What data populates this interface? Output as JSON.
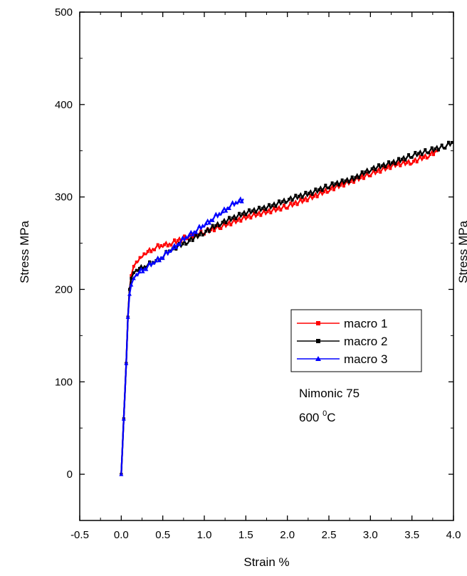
{
  "chart_data": {
    "type": "line",
    "xlabel": "Strain   %",
    "ylabel": "Stress   MPa",
    "xlim": [
      -0.5,
      4.0
    ],
    "ylim": [
      -50,
      500
    ],
    "x_ticks": [
      -0.5,
      0.0,
      0.5,
      1.0,
      1.5,
      2.0,
      2.5,
      3.0,
      3.5,
      4.0
    ],
    "x_tick_labels": [
      "-0.5",
      "0.0",
      "0.5",
      "1.0",
      "1.5",
      "2.0",
      "2.5",
      "3.0",
      "3.5",
      "4.0"
    ],
    "y_ticks": [
      0,
      100,
      200,
      300,
      400,
      500
    ],
    "y_tick_labels": [
      "0",
      "100",
      "200",
      "300",
      "400",
      "500"
    ],
    "grid": false,
    "legend_position": "center-right",
    "annotations": {
      "material": "Nimonic 75",
      "temperature_value": "600 ",
      "temperature_superscript": "0",
      "temperature_unit": "C"
    },
    "clipped_right_axis_label": "Stress   MPa",
    "series": [
      {
        "name": "macro 1",
        "color": "#ff0000",
        "marker": "square",
        "x": [
          0.0,
          0.03,
          0.06,
          0.08,
          0.1,
          0.12,
          0.15,
          0.2,
          0.25,
          0.3,
          0.4,
          0.5,
          0.6,
          0.8,
          1.0,
          1.2,
          1.5,
          1.8,
          2.0,
          2.3,
          2.5,
          2.8,
          3.0,
          3.3,
          3.5,
          3.7,
          3.8
        ],
        "y": [
          0,
          60,
          120,
          170,
          200,
          215,
          225,
          232,
          237,
          240,
          245,
          248,
          250,
          257,
          262,
          268,
          278,
          285,
          290,
          300,
          308,
          318,
          325,
          335,
          338,
          345,
          350
        ]
      },
      {
        "name": "macro 2",
        "color": "#000000",
        "marker": "square",
        "x": [
          0.0,
          0.03,
          0.06,
          0.08,
          0.1,
          0.12,
          0.15,
          0.2,
          0.3,
          0.4,
          0.5,
          0.6,
          0.8,
          1.0,
          1.2,
          1.5,
          1.8,
          2.0,
          2.3,
          2.5,
          2.8,
          3.0,
          3.3,
          3.5,
          3.7,
          3.9,
          4.0
        ],
        "y": [
          0,
          60,
          120,
          170,
          200,
          212,
          218,
          222,
          226,
          230,
          236,
          243,
          252,
          262,
          272,
          283,
          290,
          297,
          305,
          312,
          320,
          330,
          338,
          345,
          350,
          355,
          360
        ]
      },
      {
        "name": "macro 3",
        "color": "#0000ff",
        "marker": "triangle",
        "x": [
          0.0,
          0.03,
          0.06,
          0.08,
          0.1,
          0.12,
          0.15,
          0.2,
          0.3,
          0.4,
          0.5,
          0.6,
          0.7,
          0.8,
          0.9,
          1.0,
          1.1,
          1.2,
          1.3,
          1.4,
          1.47
        ],
        "y": [
          0,
          60,
          120,
          170,
          195,
          205,
          212,
          218,
          224,
          230,
          236,
          243,
          251,
          258,
          264,
          270,
          277,
          283,
          290,
          295,
          298
        ]
      }
    ]
  }
}
